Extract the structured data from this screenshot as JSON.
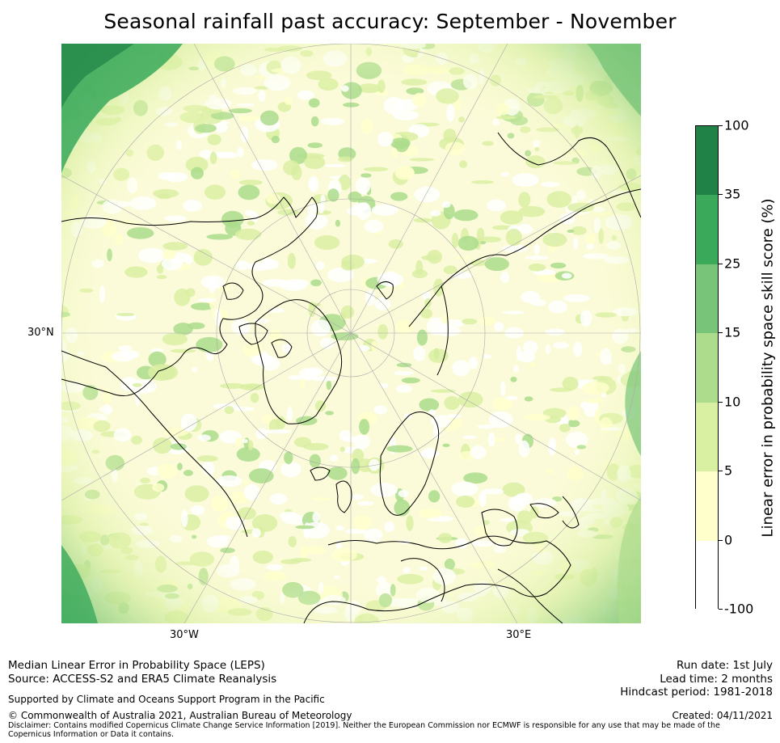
{
  "title": "Seasonal rainfall past accuracy: September - November",
  "map": {
    "lat_label": "30°N",
    "lon_labels": [
      "30°W",
      "30°E"
    ]
  },
  "colorbar": {
    "label": "Linear error in probability space skill score (%)",
    "ticks": [
      "100",
      "35",
      "25",
      "15",
      "10",
      "5",
      "0",
      "-100"
    ],
    "colors": [
      "#208246",
      "#3aa95a",
      "#78c478",
      "#acdc8c",
      "#d9efa2",
      "#ffffcc",
      "#ffffff"
    ]
  },
  "footer": {
    "left_line1": "Median Linear Error in Probability Space (LEPS)",
    "left_line2": "Source: ACCESS-S2 and ERA5 Climate Reanalysis",
    "support": "Supported by Climate and Oceans Support Program in the Pacific",
    "copyright": "© Commonwealth of Australia 2021, Australian Bureau of Meteorology",
    "disclaimer": "Disclaimer: Contains modified Copernicus Climate Change Service Information [2019]. Neither the European Commission nor ECMWF is responsible for any use that may be made of the Copernicus Information or Data it contains.",
    "run_date": "Run date: 1st July",
    "lead_time": "Lead time: 2 months",
    "hindcast": "Hindcast period: 1981-2018",
    "created": "Created: 04/11/2021"
  }
}
